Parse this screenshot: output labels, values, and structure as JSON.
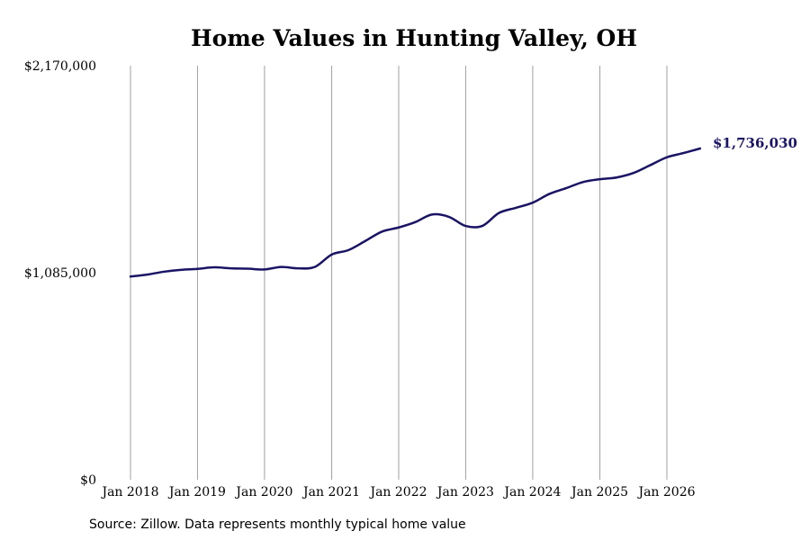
{
  "chart_data": {
    "type": "line",
    "title": "Home Values in Hunting Valley, OH",
    "source_note": "Source: Zillow. Data represents monthly typical home value",
    "ylim": [
      0,
      2170000
    ],
    "y_ticks": [
      0,
      1085000,
      2170000
    ],
    "y_tick_labels": [
      "$0",
      "$1,085,000",
      "$2,170,000"
    ],
    "x_ticks": [
      "2018-01",
      "2019-01",
      "2020-01",
      "2021-01",
      "2022-01",
      "2023-01",
      "2024-01",
      "2025-01",
      "2026-01"
    ],
    "x_tick_labels": [
      "Jan 2018",
      "Jan 2019",
      "Jan 2020",
      "Jan 2021",
      "Jan 2022",
      "Jan 2023",
      "Jan 2024",
      "Jan 2025",
      "Jan 2026"
    ],
    "grid": "vertical",
    "line_color": "#1a1464",
    "grid_color": "#a0a0a0",
    "end_label": "$1,736,030",
    "series": [
      {
        "x": [
          "2018-01",
          "2018-04",
          "2018-07",
          "2018-10",
          "2019-01",
          "2019-04",
          "2019-07",
          "2019-10",
          "2020-01",
          "2020-04",
          "2020-07",
          "2020-10",
          "2021-01",
          "2021-04",
          "2021-07",
          "2021-10",
          "2022-01",
          "2022-04",
          "2022-07",
          "2022-10",
          "2023-01",
          "2023-04",
          "2023-07",
          "2023-10",
          "2024-01",
          "2024-04",
          "2024-07",
          "2024-10",
          "2025-01",
          "2025-04",
          "2025-07",
          "2025-10",
          "2026-01",
          "2026-04",
          "2026-07"
        ],
        "values": [
          1065000,
          1075000,
          1090000,
          1100000,
          1105000,
          1113000,
          1108000,
          1106000,
          1102000,
          1115000,
          1108000,
          1115000,
          1180000,
          1203000,
          1250000,
          1300000,
          1322000,
          1350000,
          1390000,
          1378000,
          1330000,
          1330000,
          1398000,
          1425000,
          1452000,
          1498000,
          1528000,
          1560000,
          1575000,
          1584000,
          1607000,
          1648000,
          1690000,
          1712000,
          1736030
        ]
      }
    ]
  }
}
